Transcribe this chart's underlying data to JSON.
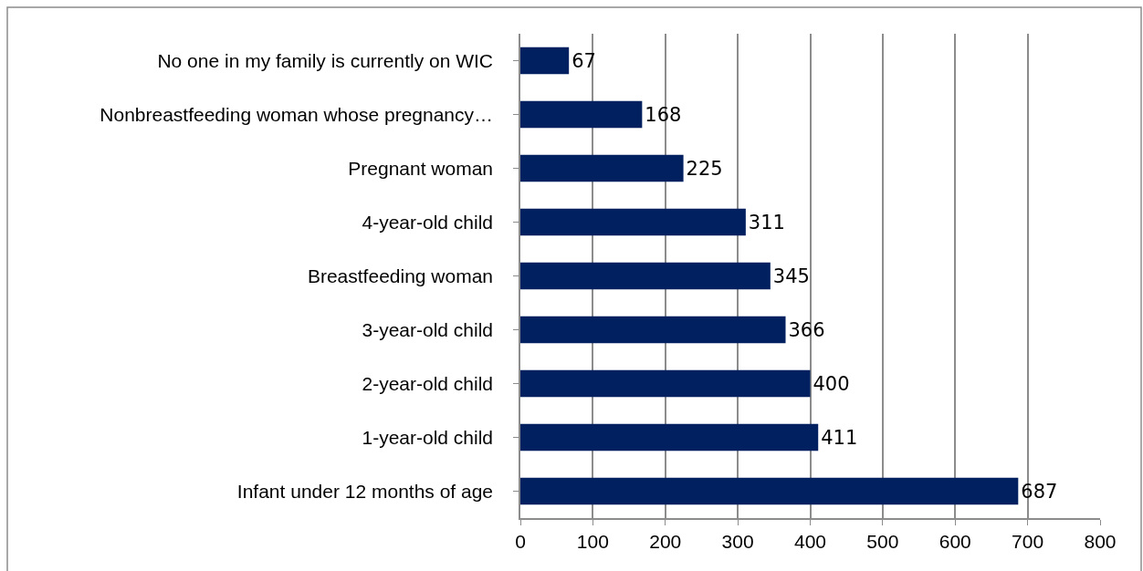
{
  "chart_data": {
    "type": "bar",
    "orientation": "horizontal",
    "categories": [
      "No one in my family is currently on WIC",
      "Nonbreastfeeding woman whose pregnancy…",
      "Pregnant woman",
      "4-year-old child",
      "Breastfeeding woman",
      "3-year-old child",
      "2-year-old child",
      "1-year-old child",
      "Infant under 12 months of age"
    ],
    "values": [
      67,
      168,
      225,
      311,
      345,
      366,
      400,
      411,
      687
    ],
    "color": "#002060",
    "xlim": [
      0,
      800
    ],
    "xticks": [
      0,
      100,
      200,
      300,
      400,
      500,
      600,
      700,
      800
    ],
    "grid": "x",
    "data_labels": true
  }
}
